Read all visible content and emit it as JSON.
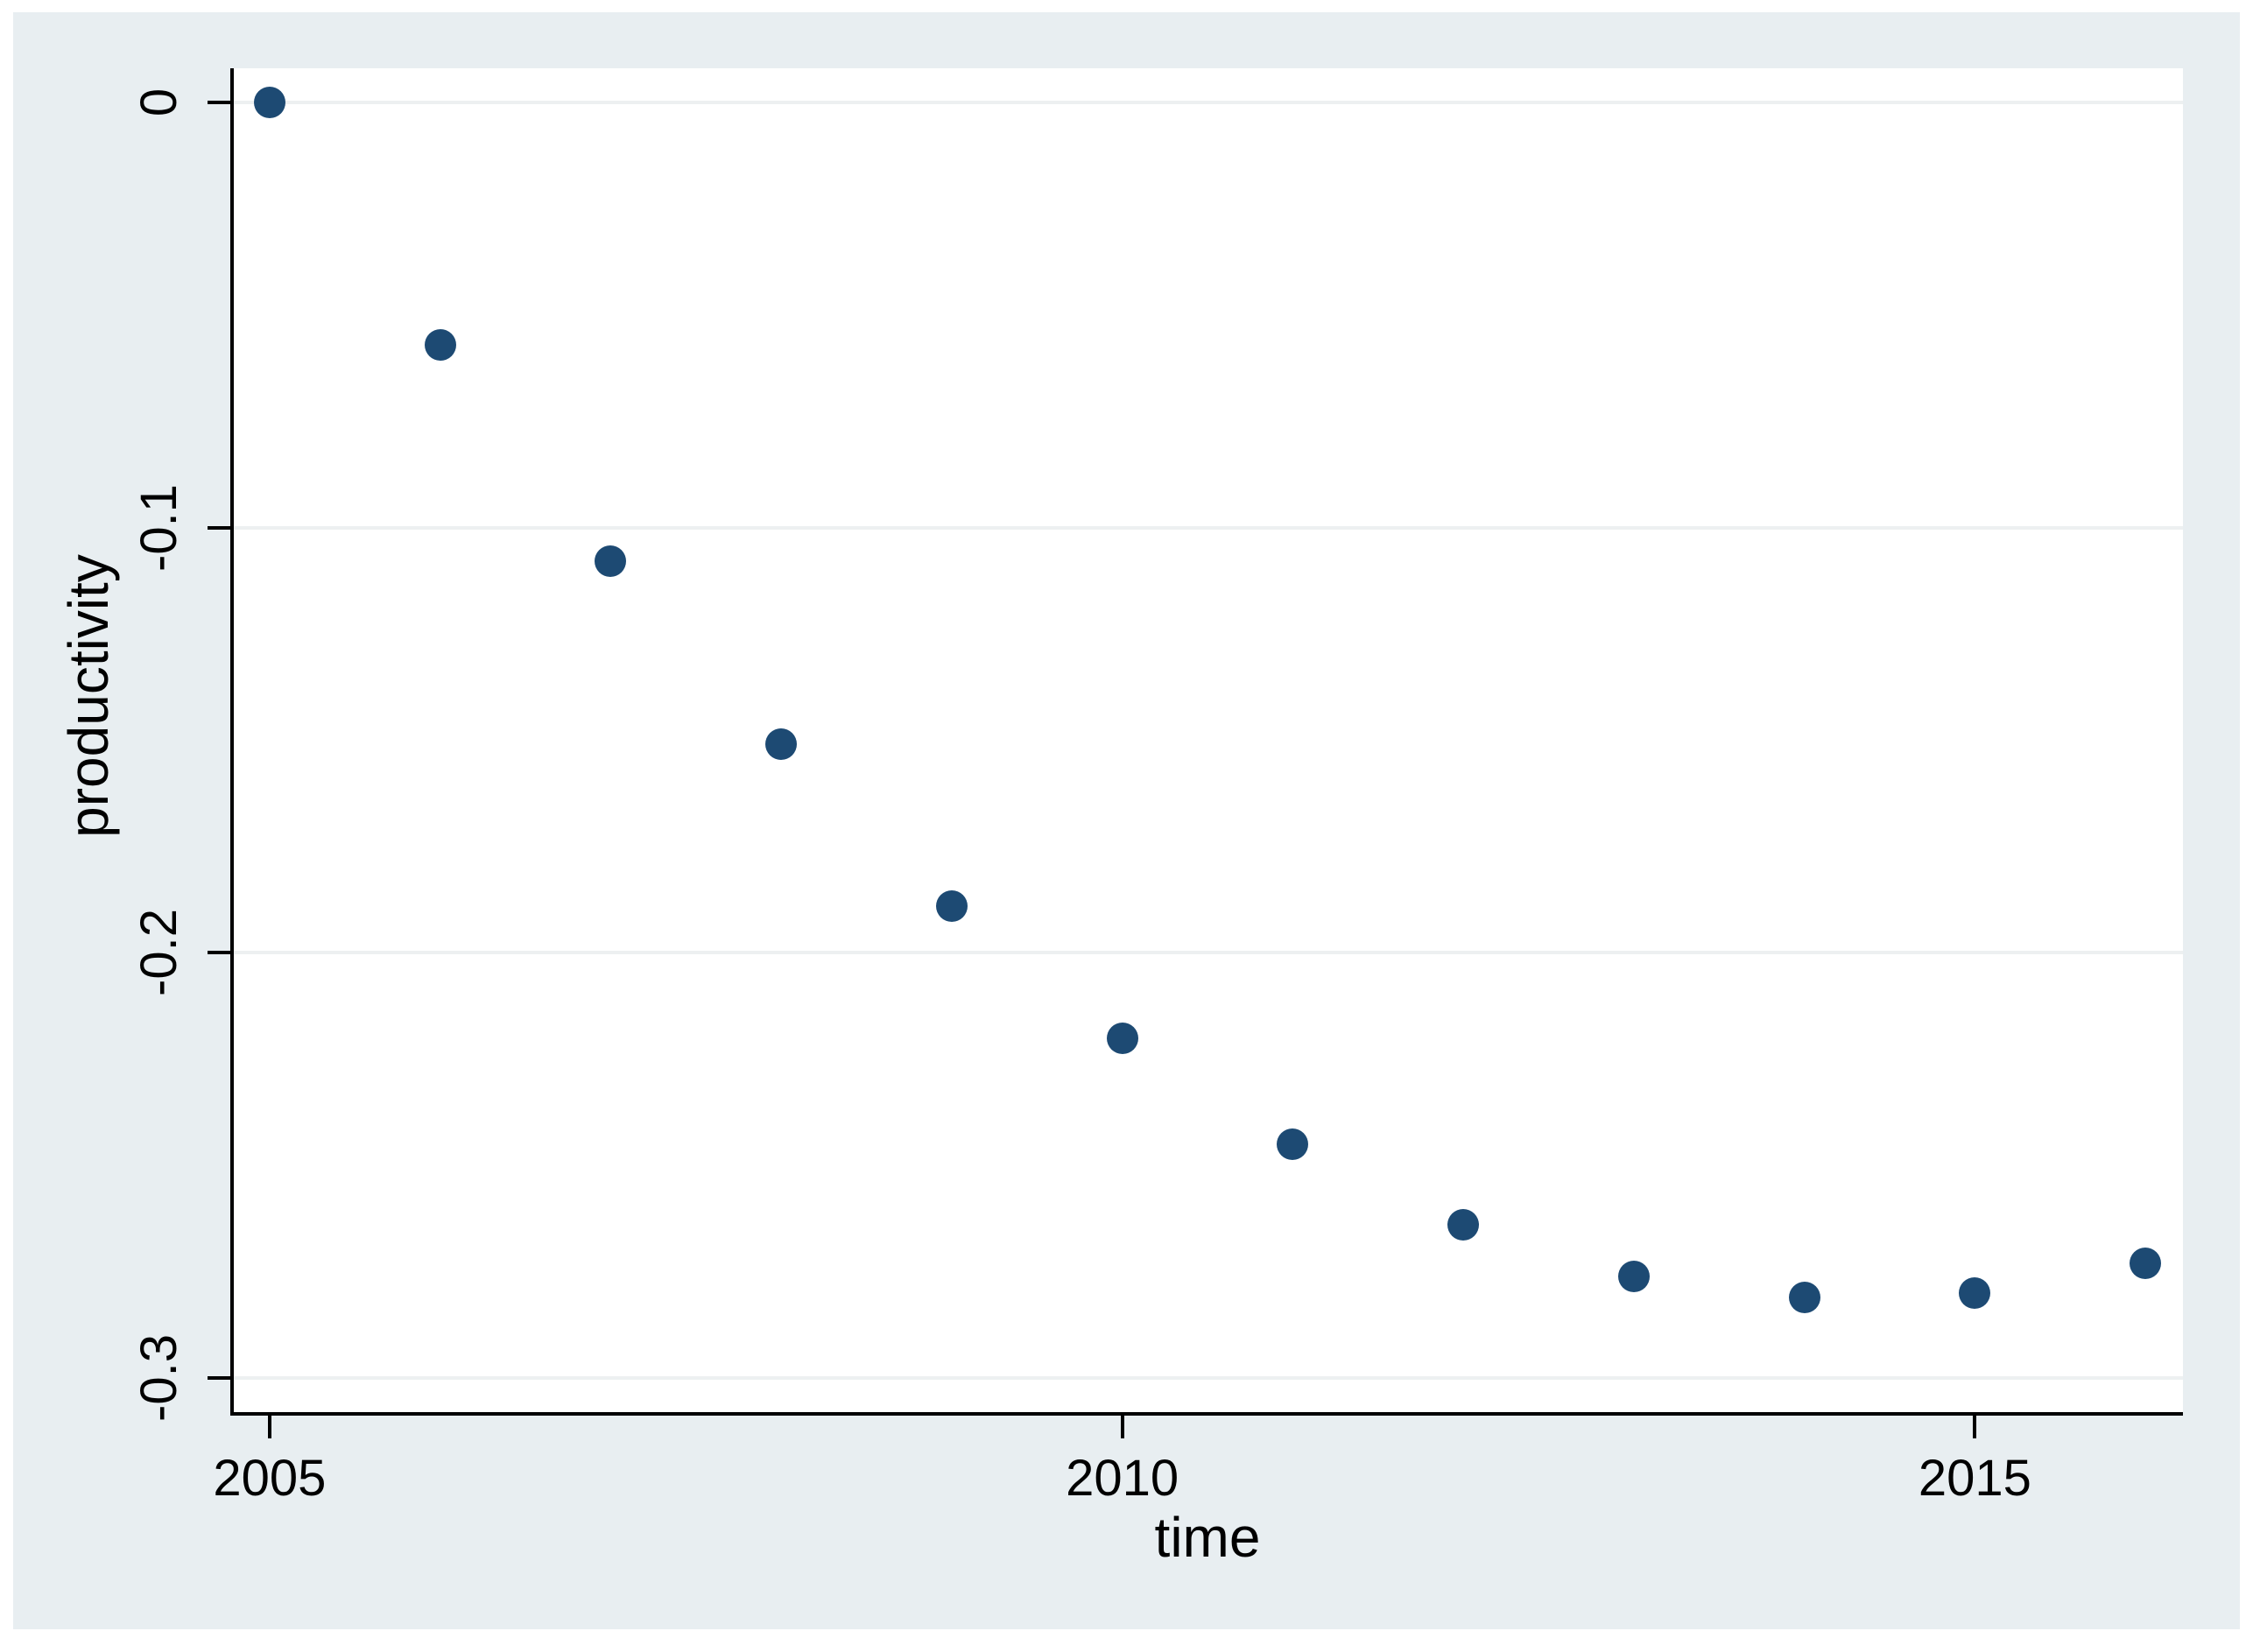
{
  "figure": {
    "outer_background": "#ffffff",
    "region_background": "#e8eef1",
    "plot_background": "#ffffff",
    "axis_color": "#000000",
    "text_color": "#000000"
  },
  "chart_data": {
    "type": "scatter",
    "title": "",
    "xlabel": "time",
    "ylabel": "productivity",
    "x": [
      2005,
      2006,
      2007,
      2008,
      2009,
      2010,
      2011,
      2012,
      2013,
      2014,
      2015,
      2016
    ],
    "y": [
      0,
      -0.057,
      -0.108,
      -0.151,
      -0.189,
      -0.22,
      -0.245,
      -0.264,
      -0.276,
      -0.281,
      -0.28,
      -0.273
    ],
    "xlim": [
      2004.78,
      2016.22
    ],
    "ylim": [
      -0.308,
      0.008
    ],
    "x_ticks": [
      2005,
      2010,
      2015
    ],
    "x_tick_labels": [
      "2005",
      "2010",
      "2015"
    ],
    "y_ticks": [
      0,
      -0.1,
      -0.2,
      -0.3
    ],
    "y_tick_labels": [
      "0",
      "-0.1",
      "-0.2",
      "-0.3"
    ],
    "grid": "horizontal",
    "legend": "none",
    "marker_color": "#1d4a73",
    "grid_color": "#edf0f1"
  }
}
